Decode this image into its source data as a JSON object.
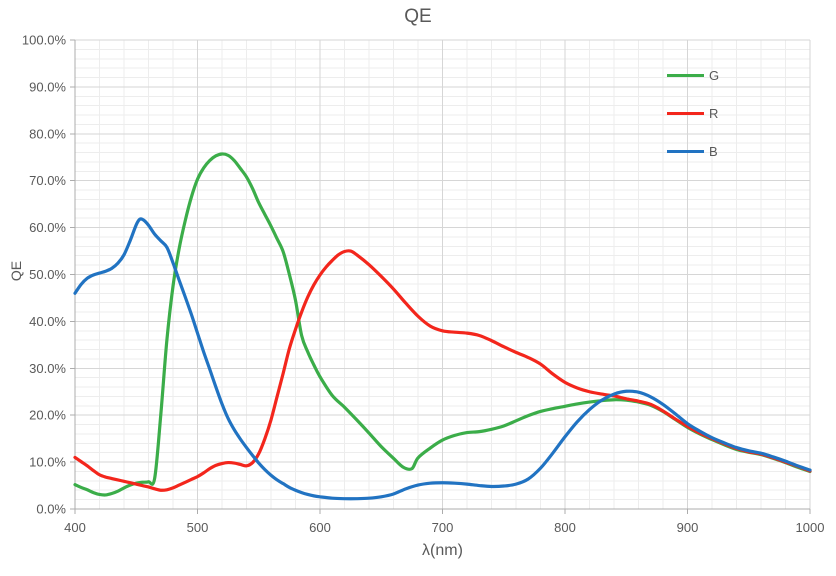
{
  "chart_data": {
    "type": "line",
    "title": "QE",
    "xlabel": "λ(nm)",
    "ylabel": "QE",
    "xlim": [
      400,
      1000
    ],
    "ylim": [
      0,
      100
    ],
    "x_ticks": [
      "400",
      "500",
      "600",
      "700",
      "800",
      "900",
      "1000"
    ],
    "y_ticks": [
      "0.0%",
      "10.0%",
      "20.0%",
      "30.0%",
      "40.0%",
      "50.0%",
      "60.0%",
      "70.0%",
      "80.0%",
      "90.0%",
      "100.0%"
    ],
    "x_major_step_nm": 100,
    "x_minor_step_nm": 20,
    "y_major_step_pct": 10,
    "y_minor_step_pct": 2,
    "grid": "major+minor",
    "legend_position": "top-right-inside",
    "colors": {
      "grid_minor": "#EDEDED",
      "grid_major": "#D6D6D6",
      "axis": "#ACACAC",
      "text": "#595959",
      "background": "#FFFFFF"
    },
    "series": [
      {
        "name": "G",
        "color": "#3BAD49",
        "points": [
          [
            400,
            5.2
          ],
          [
            405,
            4.6
          ],
          [
            410,
            4.1
          ],
          [
            415,
            3.5
          ],
          [
            420,
            3.1
          ],
          [
            425,
            3.0
          ],
          [
            430,
            3.3
          ],
          [
            435,
            3.8
          ],
          [
            440,
            4.5
          ],
          [
            445,
            5.1
          ],
          [
            450,
            5.5
          ],
          [
            455,
            5.7
          ],
          [
            460,
            5.8
          ],
          [
            465,
            6.5
          ],
          [
            470,
            20.0
          ],
          [
            475,
            36.0
          ],
          [
            480,
            47.5
          ],
          [
            485,
            55.5
          ],
          [
            490,
            61.5
          ],
          [
            495,
            66.5
          ],
          [
            500,
            70.3
          ],
          [
            505,
            72.7
          ],
          [
            510,
            74.3
          ],
          [
            515,
            75.3
          ],
          [
            520,
            75.7
          ],
          [
            525,
            75.4
          ],
          [
            530,
            74.3
          ],
          [
            535,
            72.6
          ],
          [
            540,
            70.8
          ],
          [
            545,
            68.3
          ],
          [
            550,
            65.3
          ],
          [
            555,
            62.8
          ],
          [
            560,
            60.3
          ],
          [
            565,
            57.6
          ],
          [
            570,
            54.8
          ],
          [
            575,
            50.0
          ],
          [
            580,
            44.5
          ],
          [
            585,
            37.0
          ],
          [
            590,
            33.5
          ],
          [
            595,
            30.7
          ],
          [
            600,
            28.2
          ],
          [
            610,
            24.2
          ],
          [
            620,
            21.7
          ],
          [
            630,
            19.0
          ],
          [
            640,
            16.2
          ],
          [
            650,
            13.3
          ],
          [
            660,
            10.8
          ],
          [
            668,
            8.9
          ],
          [
            675,
            8.6
          ],
          [
            680,
            10.9
          ],
          [
            690,
            13.0
          ],
          [
            700,
            14.7
          ],
          [
            710,
            15.7
          ],
          [
            720,
            16.3
          ],
          [
            730,
            16.5
          ],
          [
            740,
            17.0
          ],
          [
            750,
            17.7
          ],
          [
            760,
            18.8
          ],
          [
            770,
            19.9
          ],
          [
            780,
            20.8
          ],
          [
            790,
            21.4
          ],
          [
            800,
            21.9
          ],
          [
            810,
            22.4
          ],
          [
            820,
            22.8
          ],
          [
            830,
            23.1
          ],
          [
            840,
            23.3
          ],
          [
            850,
            23.2
          ],
          [
            860,
            22.8
          ],
          [
            870,
            22.1
          ],
          [
            880,
            20.8
          ],
          [
            890,
            19.1
          ],
          [
            900,
            17.4
          ],
          [
            910,
            16.0
          ],
          [
            920,
            14.8
          ],
          [
            930,
            13.7
          ],
          [
            940,
            12.7
          ],
          [
            950,
            12.1
          ],
          [
            960,
            11.6
          ],
          [
            970,
            10.8
          ],
          [
            980,
            9.9
          ],
          [
            990,
            8.9
          ],
          [
            1000,
            8.0
          ]
        ]
      },
      {
        "name": "R",
        "color": "#F3261C",
        "points": [
          [
            400,
            11.0
          ],
          [
            405,
            10.1
          ],
          [
            410,
            9.2
          ],
          [
            415,
            8.2
          ],
          [
            420,
            7.3
          ],
          [
            425,
            6.8
          ],
          [
            430,
            6.5
          ],
          [
            435,
            6.2
          ],
          [
            440,
            5.9
          ],
          [
            445,
            5.6
          ],
          [
            450,
            5.3
          ],
          [
            455,
            5.0
          ],
          [
            460,
            4.7
          ],
          [
            465,
            4.3
          ],
          [
            470,
            4.0
          ],
          [
            475,
            4.1
          ],
          [
            480,
            4.5
          ],
          [
            485,
            5.1
          ],
          [
            490,
            5.7
          ],
          [
            495,
            6.3
          ],
          [
            500,
            6.9
          ],
          [
            505,
            7.7
          ],
          [
            510,
            8.6
          ],
          [
            515,
            9.3
          ],
          [
            520,
            9.7
          ],
          [
            525,
            9.9
          ],
          [
            530,
            9.8
          ],
          [
            535,
            9.5
          ],
          [
            540,
            9.2
          ],
          [
            545,
            9.9
          ],
          [
            550,
            11.8
          ],
          [
            555,
            15.0
          ],
          [
            560,
            19.0
          ],
          [
            565,
            24.0
          ],
          [
            570,
            29.0
          ],
          [
            575,
            34.2
          ],
          [
            580,
            38.3
          ],
          [
            585,
            42.0
          ],
          [
            590,
            45.2
          ],
          [
            595,
            47.8
          ],
          [
            600,
            49.9
          ],
          [
            605,
            51.6
          ],
          [
            610,
            53.0
          ],
          [
            615,
            54.2
          ],
          [
            620,
            54.9
          ],
          [
            625,
            55.0
          ],
          [
            630,
            54.2
          ],
          [
            640,
            52.1
          ],
          [
            650,
            49.6
          ],
          [
            660,
            46.9
          ],
          [
            670,
            43.9
          ],
          [
            680,
            41.1
          ],
          [
            690,
            39.0
          ],
          [
            700,
            38.0
          ],
          [
            710,
            37.7
          ],
          [
            720,
            37.5
          ],
          [
            730,
            37.0
          ],
          [
            740,
            35.9
          ],
          [
            750,
            34.6
          ],
          [
            760,
            33.4
          ],
          [
            770,
            32.3
          ],
          [
            780,
            30.9
          ],
          [
            790,
            28.8
          ],
          [
            800,
            27.0
          ],
          [
            810,
            25.8
          ],
          [
            820,
            25.0
          ],
          [
            830,
            24.5
          ],
          [
            840,
            24.1
          ],
          [
            850,
            23.5
          ],
          [
            860,
            23.0
          ],
          [
            870,
            22.3
          ],
          [
            880,
            20.9
          ],
          [
            890,
            19.2
          ],
          [
            900,
            17.6
          ],
          [
            910,
            16.2
          ],
          [
            920,
            15.0
          ],
          [
            930,
            13.9
          ],
          [
            940,
            12.9
          ],
          [
            950,
            12.2
          ],
          [
            960,
            11.7
          ],
          [
            970,
            10.9
          ],
          [
            980,
            10.0
          ],
          [
            990,
            9.1
          ],
          [
            1000,
            8.1
          ]
        ]
      },
      {
        "name": "B",
        "color": "#2173C2",
        "points": [
          [
            400,
            46.0
          ],
          [
            405,
            47.9
          ],
          [
            410,
            49.2
          ],
          [
            415,
            49.9
          ],
          [
            420,
            50.3
          ],
          [
            425,
            50.7
          ],
          [
            430,
            51.3
          ],
          [
            435,
            52.4
          ],
          [
            440,
            54.2
          ],
          [
            445,
            57.2
          ],
          [
            450,
            60.6
          ],
          [
            453,
            61.8
          ],
          [
            456,
            61.6
          ],
          [
            460,
            60.5
          ],
          [
            465,
            58.6
          ],
          [
            470,
            57.2
          ],
          [
            475,
            55.8
          ],
          [
            480,
            52.5
          ],
          [
            485,
            48.8
          ],
          [
            490,
            45.2
          ],
          [
            495,
            41.5
          ],
          [
            500,
            37.5
          ],
          [
            505,
            33.5
          ],
          [
            510,
            29.8
          ],
          [
            515,
            26.0
          ],
          [
            520,
            22.4
          ],
          [
            525,
            19.3
          ],
          [
            530,
            16.9
          ],
          [
            535,
            14.9
          ],
          [
            540,
            13.1
          ],
          [
            545,
            11.4
          ],
          [
            550,
            9.8
          ],
          [
            555,
            8.4
          ],
          [
            560,
            7.2
          ],
          [
            565,
            6.2
          ],
          [
            570,
            5.4
          ],
          [
            575,
            4.6
          ],
          [
            580,
            4.0
          ],
          [
            585,
            3.5
          ],
          [
            590,
            3.1
          ],
          [
            595,
            2.8
          ],
          [
            600,
            2.6
          ],
          [
            610,
            2.3
          ],
          [
            620,
            2.2
          ],
          [
            630,
            2.2
          ],
          [
            640,
            2.3
          ],
          [
            650,
            2.6
          ],
          [
            660,
            3.2
          ],
          [
            670,
            4.3
          ],
          [
            680,
            5.1
          ],
          [
            690,
            5.5
          ],
          [
            700,
            5.6
          ],
          [
            710,
            5.5
          ],
          [
            720,
            5.3
          ],
          [
            730,
            5.0
          ],
          [
            740,
            4.8
          ],
          [
            750,
            4.9
          ],
          [
            760,
            5.3
          ],
          [
            770,
            6.4
          ],
          [
            780,
            8.7
          ],
          [
            790,
            11.9
          ],
          [
            800,
            15.4
          ],
          [
            810,
            18.6
          ],
          [
            820,
            21.2
          ],
          [
            830,
            23.2
          ],
          [
            840,
            24.5
          ],
          [
            850,
            25.1
          ],
          [
            860,
            24.9
          ],
          [
            870,
            23.9
          ],
          [
            880,
            22.3
          ],
          [
            890,
            20.3
          ],
          [
            900,
            18.2
          ],
          [
            910,
            16.6
          ],
          [
            920,
            15.2
          ],
          [
            930,
            14.1
          ],
          [
            940,
            13.1
          ],
          [
            950,
            12.4
          ],
          [
            960,
            11.9
          ],
          [
            970,
            11.1
          ],
          [
            980,
            10.2
          ],
          [
            990,
            9.2
          ],
          [
            1000,
            8.3
          ]
        ]
      }
    ]
  }
}
